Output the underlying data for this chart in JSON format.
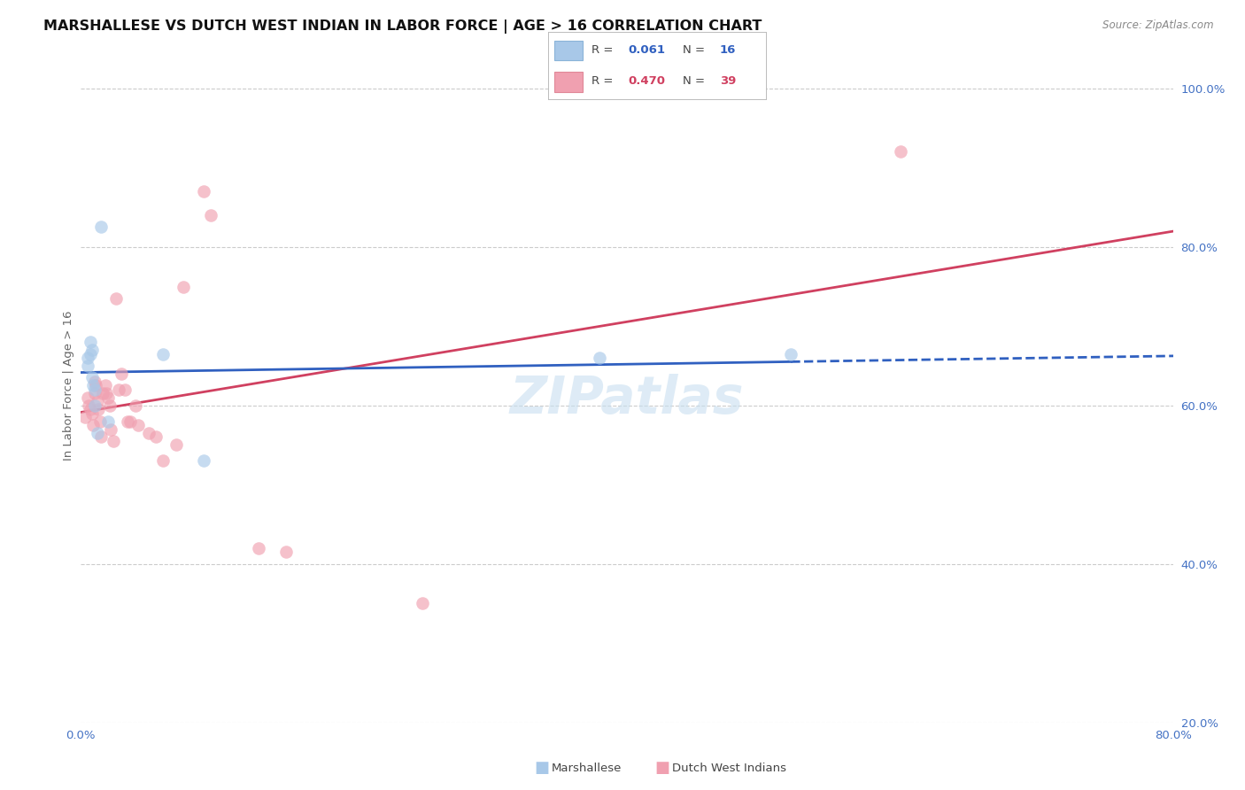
{
  "title": "MARSHALLESE VS DUTCH WEST INDIAN IN LABOR FORCE | AGE > 16 CORRELATION CHART",
  "source": "Source: ZipAtlas.com",
  "ylabel": "In Labor Force | Age > 16",
  "xlim": [
    0.0,
    0.8
  ],
  "ylim": [
    0.2,
    1.05
  ],
  "xticks": [
    0.0,
    0.1,
    0.2,
    0.3,
    0.4,
    0.5,
    0.6,
    0.7,
    0.8
  ],
  "xticklabels": [
    "0.0%",
    "",
    "",
    "",
    "",
    "",
    "",
    "",
    "80.0%"
  ],
  "yticks": [
    0.2,
    0.4,
    0.6,
    0.8,
    1.0
  ],
  "yticklabels": [
    "20.0%",
    "40.0%",
    "60.0%",
    "80.0%",
    "100.0%"
  ],
  "grid_color": "#cccccc",
  "background_color": "#ffffff",
  "marshallese_color": "#a8c8e8",
  "dutch_color": "#f0a0b0",
  "marshallese_line_color": "#3060c0",
  "dutch_line_color": "#d04060",
  "marshallese_R": 0.061,
  "marshallese_N": 16,
  "dutch_R": 0.47,
  "dutch_N": 39,
  "marshallese_x": [
    0.005,
    0.005,
    0.007,
    0.007,
    0.008,
    0.008,
    0.009,
    0.01,
    0.01,
    0.012,
    0.015,
    0.02,
    0.06,
    0.09,
    0.38,
    0.52
  ],
  "marshallese_y": [
    0.66,
    0.65,
    0.68,
    0.665,
    0.67,
    0.635,
    0.625,
    0.62,
    0.6,
    0.565,
    0.825,
    0.58,
    0.665,
    0.53,
    0.66,
    0.665
  ],
  "dutch_x": [
    0.003,
    0.005,
    0.006,
    0.007,
    0.008,
    0.009,
    0.01,
    0.01,
    0.011,
    0.012,
    0.013,
    0.014,
    0.015,
    0.016,
    0.018,
    0.019,
    0.02,
    0.021,
    0.022,
    0.024,
    0.026,
    0.028,
    0.03,
    0.032,
    0.034,
    0.036,
    0.04,
    0.042,
    0.05,
    0.055,
    0.06,
    0.07,
    0.075,
    0.09,
    0.095,
    0.13,
    0.15,
    0.25,
    0.6
  ],
  "dutch_y": [
    0.585,
    0.61,
    0.6,
    0.595,
    0.59,
    0.575,
    0.63,
    0.615,
    0.625,
    0.605,
    0.595,
    0.58,
    0.56,
    0.615,
    0.625,
    0.615,
    0.61,
    0.6,
    0.57,
    0.555,
    0.735,
    0.62,
    0.64,
    0.62,
    0.58,
    0.58,
    0.6,
    0.575,
    0.565,
    0.56,
    0.53,
    0.55,
    0.75,
    0.87,
    0.84,
    0.42,
    0.415,
    0.35,
    0.92
  ],
  "watermark": "ZIPatlas",
  "marker_size": 110,
  "marker_alpha": 0.65,
  "title_fontsize": 11.5,
  "axis_fontsize": 9.5,
  "source_fontsize": 8.5
}
